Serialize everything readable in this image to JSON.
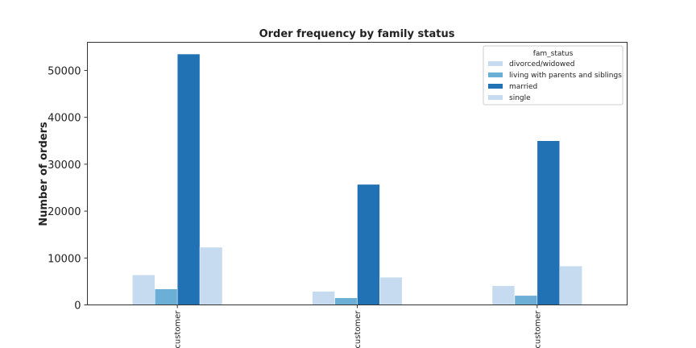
{
  "chart_data": {
    "type": "bar",
    "title": "Order frequency by family status",
    "xlabel": "",
    "ylabel": "Number of orders",
    "ylim": [
      0,
      56000
    ],
    "yticks": [
      0,
      10000,
      20000,
      30000,
      40000,
      50000
    ],
    "categories": [
      "Loyal customer",
      "Regular customer",
      "New customer"
    ],
    "categories_visible_text": [
      ": customer",
      "t customer",
      "r customer"
    ],
    "legend_title": "fam_status",
    "legend_position": "top-right",
    "grid": false,
    "series": [
      {
        "name": "divorced/widowed",
        "color": "#c6dbef",
        "values": [
          6400,
          2900,
          4100
        ]
      },
      {
        "name": "living with parents and siblings",
        "color": "#6baed6",
        "values": [
          3400,
          1500,
          2000
        ]
      },
      {
        "name": "married",
        "color": "#2171b5",
        "values": [
          53500,
          25700,
          35000
        ]
      },
      {
        "name": "single",
        "color": "#c6dbef",
        "values": [
          12300,
          5900,
          8300
        ]
      }
    ]
  }
}
